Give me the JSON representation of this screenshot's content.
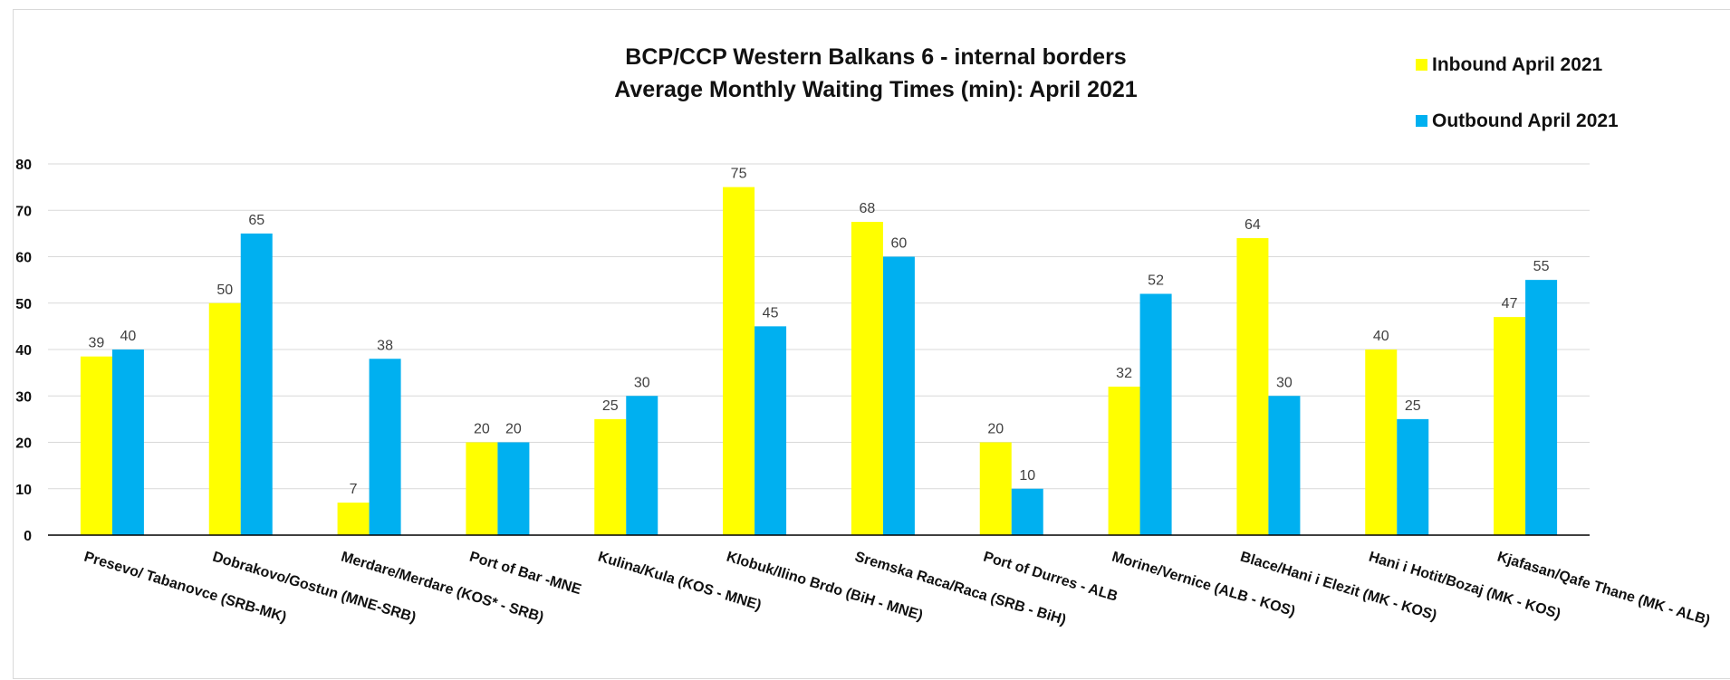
{
  "chart_data": {
    "type": "bar",
    "title": [
      "BCP/CCP Western Balkans 6 - internal borders",
      "Average Monthly Waiting Times (min): April 2021"
    ],
    "categories": [
      "Presevo/ Tabanovce (SRB-MK)",
      "Dobrakovo/Gostun (MNE-SRB)",
      "Merdare/Merdare (KOS* - SRB)",
      "Port of Bar -MNE",
      "Kulina/Kula (KOS - MNE)",
      "Klobuk/Ilino Brdo (BiH - MNE)",
      "Sremska Raca/Raca (SRB - BiH)",
      "Port of Durres - ALB",
      "Morine/Vernice (ALB - KOS)",
      "Blace/Hani i Elezit (MK - KOS)",
      "Hani i Hotit/Bozaj (MK - KOS)",
      "Kjafasan/Qafe Thane (MK - ALB)"
    ],
    "series": [
      {
        "name": "Inbound April 2021",
        "color": "#ffff00",
        "values": [
          38.5,
          50,
          7,
          20,
          25,
          75,
          67.5,
          20,
          32,
          64,
          40,
          47
        ],
        "labels": [
          "39",
          "50",
          "7",
          "20",
          "25",
          "75",
          "68",
          "20",
          "32",
          "64",
          "40",
          "47"
        ]
      },
      {
        "name": "Outbound April 2021",
        "color": "#00b0f0",
        "values": [
          40,
          65,
          38,
          20,
          30,
          45,
          60,
          10,
          52,
          30,
          25,
          55
        ],
        "labels": [
          "40",
          "65",
          "38",
          "20",
          "30",
          "45",
          "60",
          "10",
          "52",
          "30",
          "25",
          "55"
        ]
      }
    ],
    "y_ticks": [
      "0",
      "10",
      "20",
      "30",
      "40",
      "50",
      "60",
      "70",
      "80"
    ],
    "ylim": [
      0,
      80
    ],
    "grid": true,
    "legend_position": "top-right",
    "gridline_color": "#d9d9d9",
    "axis_color": "#000000"
  }
}
